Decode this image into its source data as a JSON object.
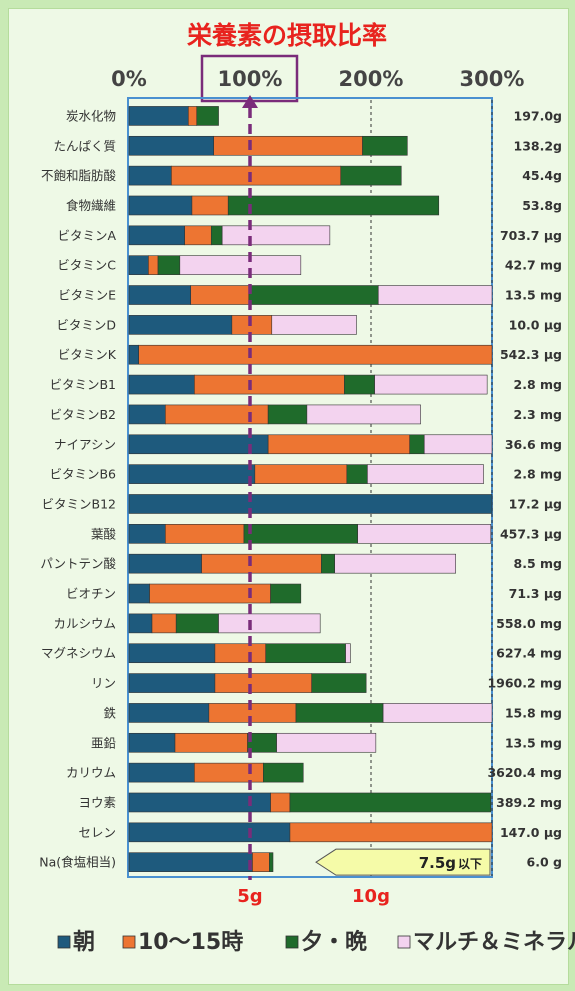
{
  "chart_data": {
    "type": "bar",
    "stacked": true,
    "orientation": "horizontal",
    "title": "栄養素の摂取比率",
    "x_ticks": [
      "0%",
      "100%",
      "200%",
      "300%"
    ],
    "x_range": [
      0,
      300
    ],
    "reference_line": {
      "value": 100
    },
    "categories": [
      "炭水化物",
      "たんぱく質",
      "不飽和脂肪酸",
      "食物繊維",
      "ビタミンA",
      "ビタミンC",
      "ビタミンE",
      "ビタミンD",
      "ビタミンK",
      "ビタミンB1",
      "ビタミンB2",
      "ナイアシン",
      "ビタミンB6",
      "ビタミンB12",
      "葉酸",
      "パントテン酸",
      "ビオチン",
      "カルシウム",
      "マグネシウム",
      "リン",
      "鉄",
      "亜鉛",
      "カリウム",
      "ヨウ素",
      "セレン",
      "Na(食塩相当)"
    ],
    "amounts": [
      "197.0g",
      "138.2g",
      "45.4g",
      "53.8g",
      "703.7 μg",
      "42.7 mg",
      "13.5 mg",
      "10.0 μg",
      "542.3 μg",
      "2.8 mg",
      "2.3 mg",
      "36.6 mg",
      "2.8 mg",
      "17.2 μg",
      "457.3 μg",
      "8.5 mg",
      "71.3 μg",
      "558.0 mg",
      "627.4 mg",
      "1960.2 mg",
      "15.8 mg",
      "13.5 mg",
      "3620.4 mg",
      "389.2 mg",
      "147.0 μg",
      "6.0 g"
    ],
    "series": [
      {
        "name": "朝",
        "color": "#1e5a7d",
        "values": [
          49,
          70,
          35,
          52,
          46,
          16,
          51,
          85,
          8,
          54,
          30,
          115,
          104,
          300,
          30,
          60,
          17,
          19,
          71,
          71,
          66,
          38,
          54,
          117,
          133,
          102
        ]
      },
      {
        "name": "10～15時",
        "color": "#ed7532",
        "values": [
          7,
          123,
          140,
          30,
          22,
          8,
          48,
          33,
          292,
          124,
          85,
          117,
          76,
          0,
          65,
          99,
          100,
          20,
          42,
          80,
          72,
          60,
          57,
          16,
          167,
          14
        ]
      },
      {
        "name": "夕・晩",
        "color": "#1f6b2b",
        "values": [
          18,
          37,
          50,
          174,
          9,
          18,
          107,
          0,
          0,
          25,
          32,
          12,
          17,
          0,
          94,
          11,
          25,
          35,
          66,
          45,
          72,
          24,
          33,
          166,
          0,
          3
        ]
      },
      {
        "name": "マルチ＆ミネラル",
        "color": "#f3d3ef",
        "values": [
          0,
          0,
          0,
          0,
          89,
          100,
          94,
          70,
          0,
          93,
          94,
          56,
          96,
          0,
          110,
          100,
          0,
          84,
          4,
          0,
          90,
          82,
          0,
          0,
          0,
          0
        ]
      }
    ],
    "x_markers": [
      "5g",
      "10g"
    ],
    "na_note": {
      "text": "7.5g",
      "suffix": "以下"
    }
  }
}
